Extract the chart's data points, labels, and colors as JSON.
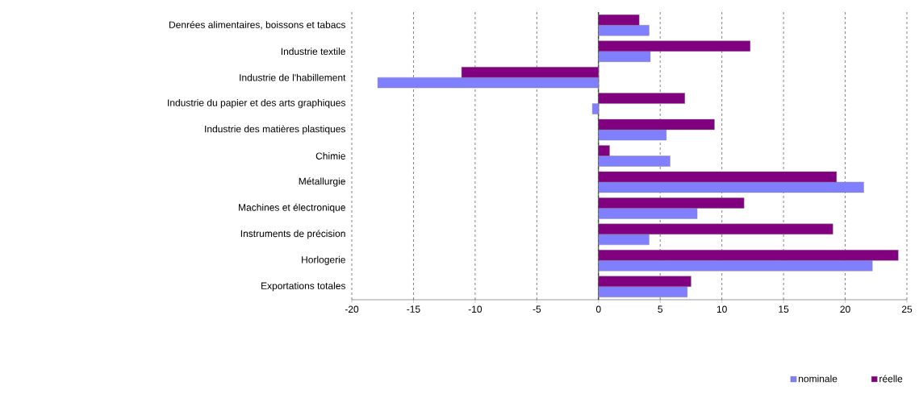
{
  "chart_data": {
    "type": "bar",
    "orientation": "horizontal",
    "categories": [
      "Denrées alimentaires, boissons et tabacs",
      "Industrie textile",
      "Industrie de l'habillement",
      "Industrie du papier et des arts graphiques",
      "Industrie des matières plastiques",
      "Chimie",
      "Métallurgie",
      "Machines et électronique",
      "Instruments de précision",
      "Horlogerie",
      "Exportations totales"
    ],
    "series": [
      {
        "name": "nominale",
        "color": "#8080ff",
        "values": [
          4.1,
          4.2,
          -17.9,
          -0.5,
          5.5,
          5.8,
          21.5,
          8.0,
          4.1,
          22.2,
          7.2
        ]
      },
      {
        "name": "réelle",
        "color": "#800080",
        "values": [
          3.3,
          12.3,
          -11.1,
          7.0,
          9.4,
          0.9,
          19.3,
          11.8,
          19.0,
          24.3,
          7.5
        ]
      }
    ],
    "xlim": [
      -20,
      25
    ],
    "xticks": [
      -20,
      -15,
      -10,
      -5,
      0,
      5,
      10,
      15,
      20,
      25
    ],
    "grid": "x",
    "legend": "bottom right"
  }
}
